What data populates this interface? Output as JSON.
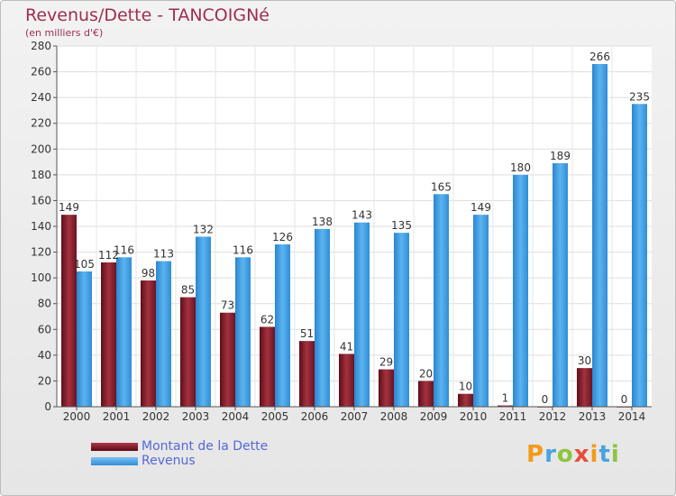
{
  "title": "Revenus/Dette - TANCOIGNé",
  "subtitle": "(en milliers d'€)",
  "legend": {
    "debt": "Montant de la Dette",
    "revenue": "Revenus"
  },
  "logo": {
    "text": "Proxiti"
  },
  "colors": {
    "debt": "#7a1a24",
    "revenue": "#3d9be3",
    "title": "#9c2f4e",
    "legend_text": "#5568d8"
  },
  "chart_data": {
    "type": "bar",
    "title": "Revenus/Dette - TANCOIGNé",
    "ylabel": "(en milliers d'€)",
    "xlabel": "",
    "ylim": [
      0,
      280
    ],
    "yticks": [
      0,
      20,
      40,
      60,
      80,
      100,
      120,
      140,
      160,
      180,
      200,
      220,
      240,
      260,
      280
    ],
    "grid": true,
    "legend_position": "bottom-left",
    "categories": [
      "2000",
      "2001",
      "2002",
      "2003",
      "2004",
      "2005",
      "2006",
      "2007",
      "2008",
      "2009",
      "2010",
      "2011",
      "2012",
      "2013",
      "2014"
    ],
    "series": [
      {
        "name": "Montant de la Dette",
        "values": [
          149,
          112,
          98,
          85,
          73,
          62,
          51,
          41,
          29,
          20,
          10,
          1,
          0,
          30,
          0
        ]
      },
      {
        "name": "Revenus",
        "values": [
          105,
          116,
          113,
          132,
          116,
          126,
          138,
          143,
          135,
          165,
          149,
          180,
          189,
          266,
          235
        ]
      }
    ]
  }
}
